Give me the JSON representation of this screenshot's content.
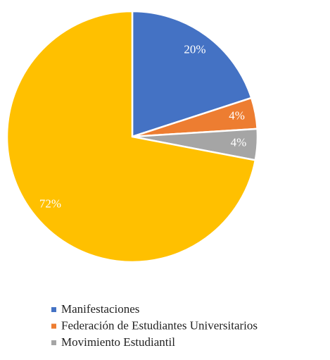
{
  "chart_data": {
    "type": "pie",
    "categories": [
      "Manifestaciones",
      "Federación de Estudiantes Universitarios",
      "Movimiento Estudiantil",
      null
    ],
    "values": [
      20,
      4,
      4,
      72
    ],
    "value_labels": [
      "20%",
      "4%",
      "4%",
      "72%"
    ],
    "colors": [
      "#4472c4",
      "#ed7d31",
      "#a5a5a5",
      "#ffc000"
    ],
    "legend": "bottom"
  }
}
